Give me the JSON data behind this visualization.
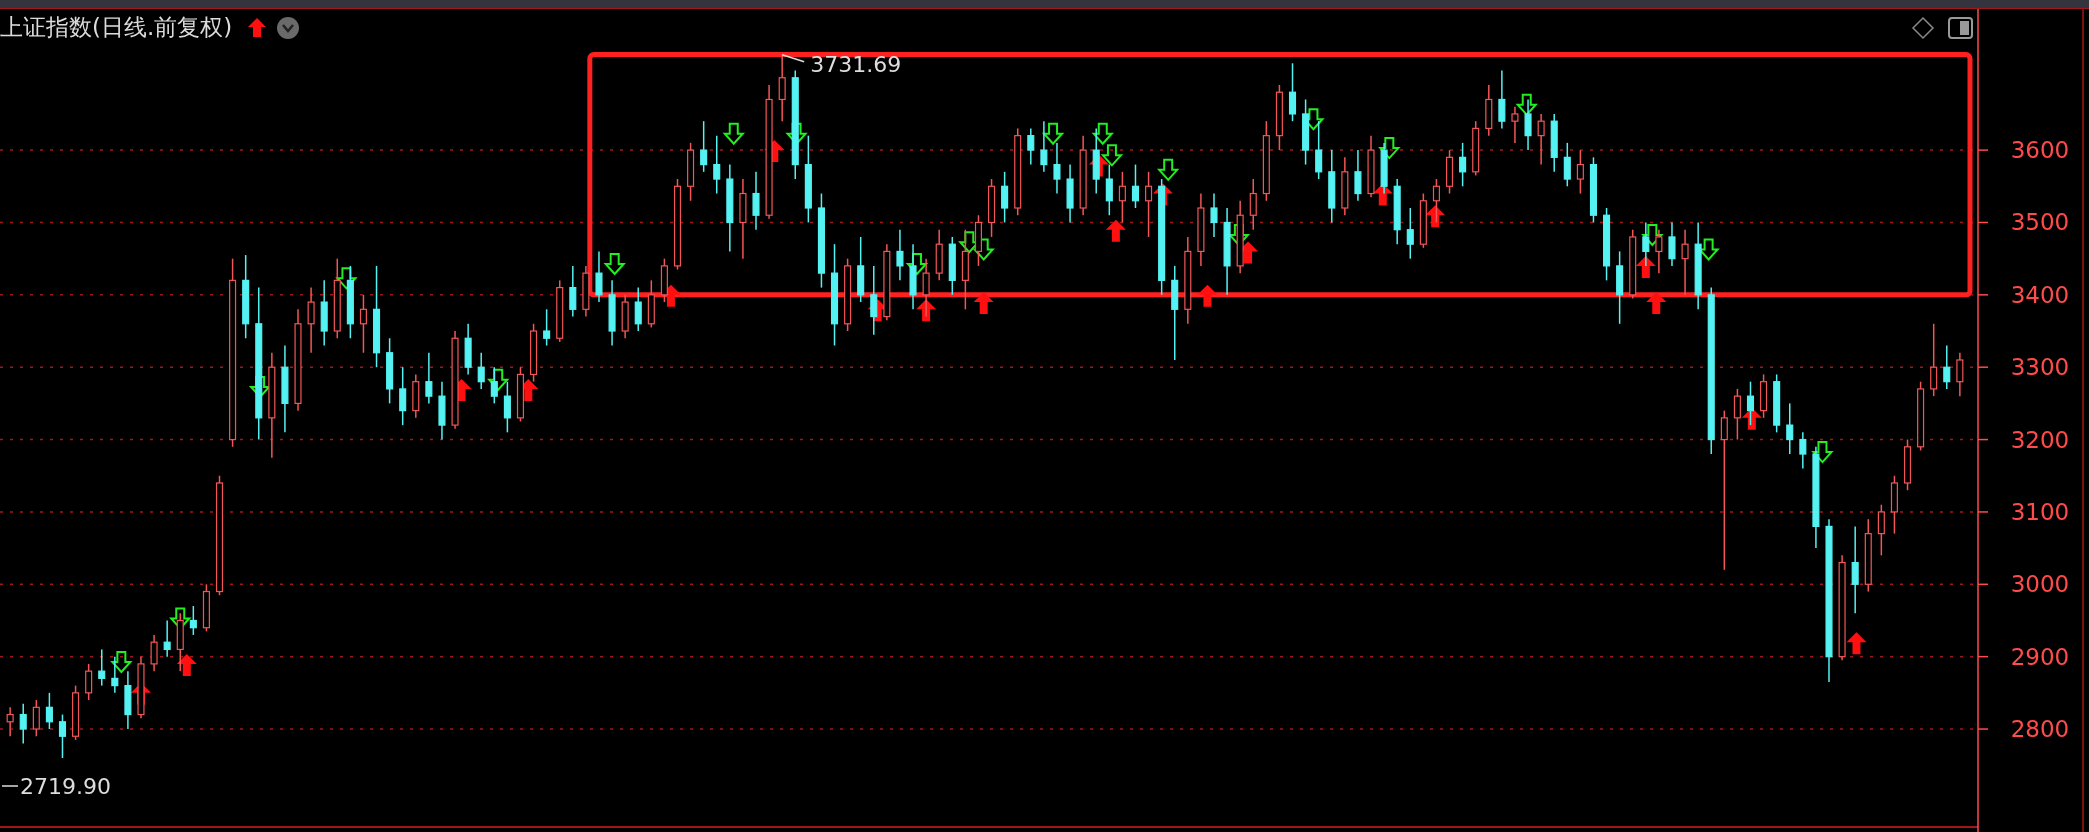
{
  "chart_data": {
    "type": "candlestick",
    "title": "上证指数(日线.前复权)",
    "categories": [
      null,
      null,
      null,
      null,
      null,
      null,
      null,
      null,
      null,
      null,
      null,
      null,
      null,
      null,
      null,
      null,
      null,
      null,
      null,
      null,
      null,
      null,
      null,
      null,
      null,
      null,
      null,
      null,
      null,
      null,
      null,
      null,
      null,
      null,
      null,
      null,
      null,
      null,
      null,
      null,
      null,
      null,
      null,
      null,
      null,
      null,
      null,
      null,
      null,
      null,
      null,
      null,
      null,
      null,
      null,
      null,
      null,
      null,
      null,
      null,
      null,
      null,
      null,
      null,
      null,
      null,
      null,
      null,
      null,
      null,
      null,
      null,
      null,
      null,
      null,
      null,
      null,
      null,
      null,
      null,
      null,
      null,
      null,
      null,
      null,
      null,
      null,
      null,
      null,
      null,
      null,
      null,
      null,
      null,
      null,
      null,
      null,
      null,
      null,
      null,
      null,
      null,
      null,
      null,
      null,
      null,
      null,
      null,
      null,
      null,
      null,
      null,
      null,
      null,
      null,
      null,
      null,
      null,
      null,
      null,
      null,
      null,
      null,
      null,
      null,
      null,
      null,
      null,
      null,
      null,
      null,
      null,
      null,
      null,
      null,
      null,
      null,
      null,
      null,
      null,
      null,
      null,
      null,
      null,
      null,
      null,
      null,
      null,
      null,
      null
    ],
    "ohlc": [
      [
        2810,
        2830,
        2790,
        2820
      ],
      [
        2820,
        2835,
        2780,
        2800
      ],
      [
        2800,
        2840,
        2790,
        2830
      ],
      [
        2830,
        2850,
        2800,
        2810
      ],
      [
        2810,
        2820,
        2760,
        2790
      ],
      [
        2790,
        2860,
        2785,
        2850
      ],
      [
        2850,
        2890,
        2840,
        2880
      ],
      [
        2880,
        2910,
        2860,
        2870
      ],
      [
        2870,
        2900,
        2850,
        2860
      ],
      [
        2860,
        2880,
        2800,
        2820
      ],
      [
        2820,
        2900,
        2815,
        2890
      ],
      [
        2890,
        2930,
        2880,
        2920
      ],
      [
        2920,
        2950,
        2900,
        2910
      ],
      [
        2910,
        2960,
        2880,
        2950
      ],
      [
        2950,
        2970,
        2930,
        2940
      ],
      [
        2940,
        3000,
        2935,
        2990
      ],
      [
        2990,
        3150,
        2985,
        3140
      ],
      [
        3200,
        3450,
        3190,
        3420
      ],
      [
        3420,
        3455,
        3340,
        3360
      ],
      [
        3360,
        3410,
        3200,
        3230
      ],
      [
        3230,
        3320,
        3175,
        3300
      ],
      [
        3300,
        3330,
        3210,
        3250
      ],
      [
        3250,
        3380,
        3240,
        3360
      ],
      [
        3360,
        3410,
        3320,
        3390
      ],
      [
        3390,
        3420,
        3330,
        3350
      ],
      [
        3350,
        3450,
        3340,
        3420
      ],
      [
        3420,
        3440,
        3340,
        3360
      ],
      [
        3360,
        3400,
        3320,
        3380
      ],
      [
        3380,
        3440,
        3300,
        3320
      ],
      [
        3320,
        3340,
        3250,
        3270
      ],
      [
        3270,
        3300,
        3220,
        3240
      ],
      [
        3240,
        3290,
        3230,
        3280
      ],
      [
        3280,
        3320,
        3250,
        3260
      ],
      [
        3260,
        3280,
        3200,
        3220
      ],
      [
        3220,
        3350,
        3215,
        3340
      ],
      [
        3340,
        3360,
        3290,
        3300
      ],
      [
        3300,
        3320,
        3270,
        3280
      ],
      [
        3280,
        3300,
        3250,
        3260
      ],
      [
        3260,
        3280,
        3210,
        3230
      ],
      [
        3230,
        3300,
        3225,
        3290
      ],
      [
        3290,
        3360,
        3280,
        3350
      ],
      [
        3350,
        3380,
        3330,
        3340
      ],
      [
        3340,
        3420,
        3335,
        3410
      ],
      [
        3410,
        3440,
        3370,
        3380
      ],
      [
        3380,
        3440,
        3370,
        3430
      ],
      [
        3430,
        3460,
        3390,
        3400
      ],
      [
        3400,
        3420,
        3330,
        3350
      ],
      [
        3350,
        3400,
        3340,
        3390
      ],
      [
        3390,
        3410,
        3350,
        3360
      ],
      [
        3360,
        3420,
        3355,
        3400
      ],
      [
        3400,
        3450,
        3390,
        3440
      ],
      [
        3440,
        3560,
        3435,
        3550
      ],
      [
        3550,
        3610,
        3530,
        3600
      ],
      [
        3600,
        3640,
        3570,
        3580
      ],
      [
        3580,
        3620,
        3540,
        3560
      ],
      [
        3560,
        3580,
        3460,
        3500
      ],
      [
        3500,
        3560,
        3450,
        3540
      ],
      [
        3540,
        3570,
        3490,
        3510
      ],
      [
        3510,
        3690,
        3505,
        3670
      ],
      [
        3670,
        3731.69,
        3640,
        3700
      ],
      [
        3700,
        3710,
        3560,
        3580
      ],
      [
        3580,
        3620,
        3500,
        3520
      ],
      [
        3520,
        3540,
        3410,
        3430
      ],
      [
        3430,
        3470,
        3330,
        3360
      ],
      [
        3360,
        3450,
        3350,
        3440
      ],
      [
        3440,
        3480,
        3390,
        3400
      ],
      [
        3400,
        3440,
        3345,
        3370
      ],
      [
        3370,
        3470,
        3365,
        3460
      ],
      [
        3460,
        3490,
        3420,
        3440
      ],
      [
        3440,
        3470,
        3380,
        3400
      ],
      [
        3400,
        3450,
        3370,
        3430
      ],
      [
        3430,
        3490,
        3420,
        3470
      ],
      [
        3470,
        3480,
        3400,
        3420
      ],
      [
        3420,
        3490,
        3380,
        3460
      ],
      [
        3460,
        3510,
        3440,
        3500
      ],
      [
        3500,
        3560,
        3480,
        3550
      ],
      [
        3550,
        3570,
        3500,
        3520
      ],
      [
        3520,
        3630,
        3510,
        3620
      ],
      [
        3620,
        3630,
        3580,
        3600
      ],
      [
        3600,
        3640,
        3570,
        3580
      ],
      [
        3580,
        3610,
        3540,
        3560
      ],
      [
        3560,
        3580,
        3500,
        3520
      ],
      [
        3520,
        3620,
        3510,
        3600
      ],
      [
        3600,
        3630,
        3540,
        3560
      ],
      [
        3560,
        3580,
        3510,
        3530
      ],
      [
        3530,
        3570,
        3500,
        3550
      ],
      [
        3550,
        3580,
        3520,
        3530
      ],
      [
        3530,
        3570,
        3480,
        3550
      ],
      [
        3550,
        3560,
        3400,
        3420
      ],
      [
        3420,
        3440,
        3310,
        3380
      ],
      [
        3380,
        3480,
        3360,
        3460
      ],
      [
        3460,
        3540,
        3440,
        3520
      ],
      [
        3520,
        3540,
        3480,
        3500
      ],
      [
        3500,
        3520,
        3400,
        3440
      ],
      [
        3440,
        3530,
        3430,
        3510
      ],
      [
        3510,
        3560,
        3490,
        3540
      ],
      [
        3540,
        3640,
        3530,
        3620
      ],
      [
        3620,
        3690,
        3600,
        3680
      ],
      [
        3680,
        3720,
        3640,
        3650
      ],
      [
        3650,
        3670,
        3580,
        3600
      ],
      [
        3600,
        3640,
        3560,
        3570
      ],
      [
        3570,
        3600,
        3500,
        3520
      ],
      [
        3520,
        3590,
        3510,
        3570
      ],
      [
        3570,
        3600,
        3530,
        3540
      ],
      [
        3540,
        3620,
        3535,
        3600
      ],
      [
        3600,
        3610,
        3540,
        3550
      ],
      [
        3550,
        3560,
        3470,
        3490
      ],
      [
        3490,
        3520,
        3450,
        3470
      ],
      [
        3470,
        3540,
        3465,
        3530
      ],
      [
        3530,
        3560,
        3500,
        3550
      ],
      [
        3550,
        3600,
        3540,
        3590
      ],
      [
        3590,
        3610,
        3550,
        3570
      ],
      [
        3570,
        3640,
        3565,
        3630
      ],
      [
        3630,
        3690,
        3620,
        3670
      ],
      [
        3670,
        3710,
        3630,
        3640
      ],
      [
        3640,
        3660,
        3610,
        3650
      ],
      [
        3650,
        3670,
        3600,
        3620
      ],
      [
        3620,
        3650,
        3580,
        3640
      ],
      [
        3640,
        3650,
        3570,
        3590
      ],
      [
        3590,
        3610,
        3550,
        3560
      ],
      [
        3560,
        3600,
        3540,
        3580
      ],
      [
        3580,
        3590,
        3500,
        3510
      ],
      [
        3510,
        3520,
        3420,
        3440
      ],
      [
        3440,
        3460,
        3360,
        3400
      ],
      [
        3400,
        3490,
        3395,
        3480
      ],
      [
        3480,
        3500,
        3440,
        3460
      ],
      [
        3460,
        3490,
        3430,
        3480
      ],
      [
        3480,
        3500,
        3440,
        3450
      ],
      [
        3450,
        3490,
        3400,
        3470
      ],
      [
        3470,
        3500,
        3380,
        3400
      ],
      [
        3400,
        3410,
        3180,
        3200
      ],
      [
        3200,
        3240,
        3020,
        3230
      ],
      [
        3230,
        3270,
        3200,
        3260
      ],
      [
        3260,
        3280,
        3220,
        3240
      ],
      [
        3240,
        3290,
        3230,
        3280
      ],
      [
        3280,
        3290,
        3210,
        3220
      ],
      [
        3220,
        3250,
        3180,
        3200
      ],
      [
        3200,
        3210,
        3160,
        3180
      ],
      [
        3180,
        3190,
        3050,
        3080
      ],
      [
        3080,
        3090,
        2865,
        2900
      ],
      [
        2900,
        3040,
        2895,
        3030
      ],
      [
        3030,
        3080,
        2960,
        3000
      ],
      [
        3000,
        3090,
        2990,
        3070
      ],
      [
        3070,
        3110,
        3040,
        3100
      ],
      [
        3100,
        3150,
        3070,
        3140
      ],
      [
        3140,
        3200,
        3130,
        3190
      ],
      [
        3190,
        3280,
        3185,
        3270
      ],
      [
        3270,
        3360,
        3260,
        3300
      ],
      [
        3300,
        3330,
        3270,
        3280
      ],
      [
        3280,
        3320,
        3260,
        3310
      ]
    ],
    "ylim": [
      2666,
      3795
    ],
    "yticks": [
      2800,
      2900,
      3000,
      3100,
      3200,
      3300,
      3400,
      3500,
      3600
    ],
    "grid": "y",
    "tick_labels": "y",
    "annotations": [
      "3731.69",
      "2719.90"
    ]
  }
}
